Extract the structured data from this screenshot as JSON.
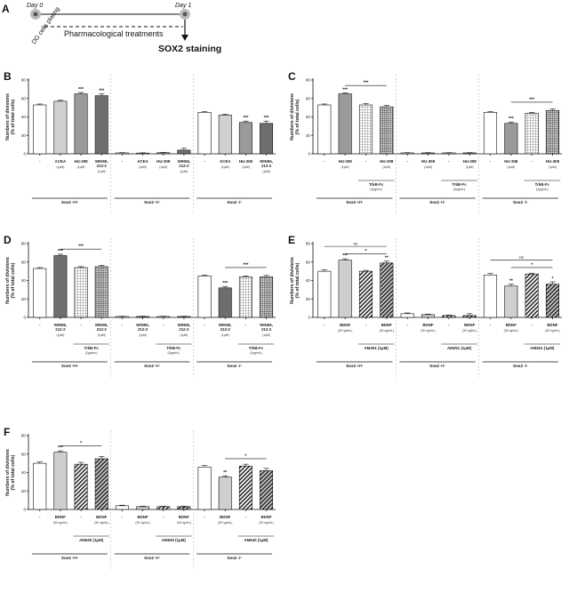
{
  "panel_a": {
    "label": "A",
    "day0": "Day 0",
    "day1": "Day 1",
    "plating": "DG cells plating",
    "treatment": "Pharmacological treatments",
    "readout": "SOX2 staining"
  },
  "colors": {
    "white": "#ffffff",
    "light_gray": "#d0d0d0",
    "mid_gray": "#9a9a9a",
    "dark_gray": "#6e6e6e",
    "black": "#111111"
  },
  "chart_data": [
    {
      "panel": "B",
      "type": "bar",
      "ylabel": "Numbers of divisions\n(% of total cells)",
      "ylim": [
        0,
        80
      ],
      "yticks": [
        0,
        20,
        40,
        60,
        80
      ],
      "groups": [
        {
          "name": "Sox2 +/+",
          "bars": [
            {
              "label": "-",
              "sub": "",
              "value": 53,
              "err": 1,
              "fill": "white",
              "sig": ""
            },
            {
              "label": "ACEA",
              "sub": "(1μM)",
              "value": 57,
              "err": 1,
              "fill": "light",
              "sig": ""
            },
            {
              "label": "HU-308",
              "sub": "(1μM)",
              "value": 65,
              "err": 1.5,
              "fill": "mid",
              "sig": "***"
            },
            {
              "label": "WIN55,\n212-2",
              "sub": "(1μM)",
              "value": 63,
              "err": 2,
              "fill": "dark",
              "sig": "***"
            }
          ]
        },
        {
          "name": "Sox2 +/-",
          "bars": [
            {
              "label": "-",
              "sub": "",
              "value": 1,
              "err": 0.3,
              "fill": "white",
              "sig": ""
            },
            {
              "label": "ACEA",
              "sub": "(1μM)",
              "value": 0.8,
              "err": 0.3,
              "fill": "light",
              "sig": ""
            },
            {
              "label": "HU-308",
              "sub": "(1μM)",
              "value": 1.2,
              "err": 0.3,
              "fill": "mid",
              "sig": ""
            },
            {
              "label": "WIN55,\n212-2",
              "sub": "(1μM)",
              "value": 4,
              "err": 2,
              "fill": "dark",
              "sig": ""
            }
          ]
        },
        {
          "name": "Sox2 -/-",
          "bars": [
            {
              "label": "-",
              "sub": "",
              "value": 45,
              "err": 0.8,
              "fill": "white",
              "sig": ""
            },
            {
              "label": "ACEA",
              "sub": "(1μM)",
              "value": 42,
              "err": 1,
              "fill": "light",
              "sig": ""
            },
            {
              "label": "HU-308",
              "sub": "(1μM)",
              "value": 34,
              "err": 1.5,
              "fill": "mid",
              "sig": "***"
            },
            {
              "label": "WIN55,\n212-2",
              "sub": "(1μM)",
              "value": 33,
              "err": 2.5,
              "fill": "dark",
              "sig": "***"
            }
          ]
        }
      ],
      "brackets": [],
      "underlines": []
    },
    {
      "panel": "C",
      "type": "bar",
      "ylabel": "Numbers of divisions\n(% of total cells)",
      "ylim": [
        0,
        80
      ],
      "yticks": [
        0,
        20,
        40,
        60,
        80
      ],
      "groups": [
        {
          "name": "Sox2 +/+",
          "bars": [
            {
              "label": "-",
              "sub": "",
              "value": 53,
              "err": 1,
              "fill": "white",
              "sig": ""
            },
            {
              "label": "HU-308",
              "sub": "(1μM)",
              "value": 65,
              "err": 1,
              "fill": "mid",
              "sig": "***"
            },
            {
              "label": "-",
              "sub": "",
              "value": 53,
              "err": 1.5,
              "fill": "grid",
              "sig": ""
            },
            {
              "label": "HU-308",
              "sub": "(1μM)",
              "value": 51,
              "err": 1.5,
              "fill": "grid_dark",
              "sig": ""
            }
          ]
        },
        {
          "name": "Sox2 +/-",
          "bars": [
            {
              "label": "-",
              "sub": "",
              "value": 1,
              "err": 0.3,
              "fill": "white",
              "sig": ""
            },
            {
              "label": "HU-308",
              "sub": "(1μM)",
              "value": 1,
              "err": 0.3,
              "fill": "mid",
              "sig": ""
            },
            {
              "label": "-",
              "sub": "",
              "value": 1,
              "err": 0.3,
              "fill": "grid",
              "sig": ""
            },
            {
              "label": "HU-308",
              "sub": "(1μM)",
              "value": 1,
              "err": 0.3,
              "fill": "grid_dark",
              "sig": ""
            }
          ]
        },
        {
          "name": "Sox2 -/-",
          "bars": [
            {
              "label": "-",
              "sub": "",
              "value": 45,
              "err": 0.8,
              "fill": "white",
              "sig": ""
            },
            {
              "label": "HU-308",
              "sub": "(1μM)",
              "value": 33,
              "err": 1.5,
              "fill": "mid",
              "sig": "***"
            },
            {
              "label": "-",
              "sub": "",
              "value": 44,
              "err": 1,
              "fill": "grid",
              "sig": ""
            },
            {
              "label": "HU-308",
              "sub": "(1μM)",
              "value": 47,
              "err": 1.5,
              "fill": "grid_dark",
              "sig": ""
            }
          ]
        }
      ],
      "brackets": [
        {
          "group": 0,
          "from": 1,
          "to": 3,
          "y": 74,
          "text": "***"
        },
        {
          "group": 2,
          "from": 1,
          "to": 3,
          "y": 56,
          "text": "***"
        }
      ],
      "underlines": [
        {
          "group": 0,
          "from": 2,
          "to": 3,
          "text": "TrkB-Fc",
          "sub": "(2μg/mL)"
        },
        {
          "group": 1,
          "from": 2,
          "to": 3,
          "text": "TrkB-Fc",
          "sub": "(2μg/mL)"
        },
        {
          "group": 2,
          "from": 2,
          "to": 3,
          "text": "TrkB-Fc",
          "sub": "(2μg/mL)"
        }
      ]
    },
    {
      "panel": "D",
      "type": "bar",
      "ylabel": "Numbers of divisions\n(% of total cells)",
      "ylim": [
        0,
        80
      ],
      "yticks": [
        0,
        20,
        40,
        60,
        80
      ],
      "groups": [
        {
          "name": "Sox2 +/+",
          "bars": [
            {
              "label": "-",
              "sub": "",
              "value": 53,
              "err": 1,
              "fill": "white",
              "sig": ""
            },
            {
              "label": "WIN55,\n212-2",
              "sub": "(1μM)",
              "value": 67,
              "err": 1.5,
              "fill": "dark",
              "sig": "***"
            },
            {
              "label": "-",
              "sub": "",
              "value": 54,
              "err": 1,
              "fill": "grid",
              "sig": ""
            },
            {
              "label": "WIN55,\n212-2",
              "sub": "(1μM)",
              "value": 55,
              "err": 1.5,
              "fill": "grid_dark",
              "sig": ""
            }
          ]
        },
        {
          "name": "Sox2 +/-",
          "bars": [
            {
              "label": "-",
              "sub": "",
              "value": 1,
              "err": 0.3,
              "fill": "white",
              "sig": ""
            },
            {
              "label": "WIN55,\n212-2",
              "sub": "(1μM)",
              "value": 1,
              "err": 0.3,
              "fill": "dark",
              "sig": ""
            },
            {
              "label": "-",
              "sub": "",
              "value": 1,
              "err": 0.3,
              "fill": "grid",
              "sig": ""
            },
            {
              "label": "WIN55,\n212-2",
              "sub": "(1μM)",
              "value": 1,
              "err": 0.3,
              "fill": "grid_dark",
              "sig": ""
            }
          ]
        },
        {
          "name": "Sox2 -/-",
          "bars": [
            {
              "label": "-",
              "sub": "",
              "value": 45,
              "err": 0.8,
              "fill": "white",
              "sig": ""
            },
            {
              "label": "WIN55,\n212-2",
              "sub": "(1μM)",
              "value": 32,
              "err": 1.5,
              "fill": "dark",
              "sig": "***"
            },
            {
              "label": "-",
              "sub": "",
              "value": 44,
              "err": 1,
              "fill": "grid",
              "sig": ""
            },
            {
              "label": "WIN55,\n212-2",
              "sub": "(1μM)",
              "value": 44,
              "err": 1.5,
              "fill": "grid_dark",
              "sig": ""
            }
          ]
        }
      ],
      "brackets": [
        {
          "group": 0,
          "from": 1,
          "to": 3,
          "y": 74,
          "text": "***"
        },
        {
          "group": 2,
          "from": 1,
          "to": 3,
          "y": 54,
          "text": "***"
        }
      ],
      "underlines": [
        {
          "group": 0,
          "from": 2,
          "to": 3,
          "text": "TrkB-Fc",
          "sub": "(2μg/mL)"
        },
        {
          "group": 1,
          "from": 2,
          "to": 3,
          "text": "TrkB-Fc",
          "sub": "(2μg/mL)"
        },
        {
          "group": 2,
          "from": 2,
          "to": 3,
          "text": "TrkB-Fc",
          "sub": "(2μg/mL)"
        }
      ]
    },
    {
      "panel": "E",
      "type": "bar",
      "ylabel": "Numbers of divisions\n(% of total cells)",
      "ylim": [
        0,
        80
      ],
      "yticks": [
        0,
        20,
        40,
        60,
        80
      ],
      "groups": [
        {
          "name": "Sox2 +/+",
          "bars": [
            {
              "label": "-",
              "sub": "",
              "value": 50,
              "err": 1.5,
              "fill": "white",
              "sig": ""
            },
            {
              "label": "BDNF",
              "sub": "(30 ng/mL)",
              "value": 62,
              "err": 1.5,
              "fill": "dots",
              "sig": "***"
            },
            {
              "label": "-",
              "sub": "",
              "value": 50,
              "err": 1,
              "fill": "hatch",
              "sig": ""
            },
            {
              "label": "BDNF",
              "sub": "(30 ng/mL)",
              "value": 59,
              "err": 2,
              "fill": "hatch_dots",
              "sig": "**"
            }
          ]
        },
        {
          "name": "Sox2 +/-",
          "bars": [
            {
              "label": "-",
              "sub": "",
              "value": 4,
              "err": 0.8,
              "fill": "white",
              "sig": ""
            },
            {
              "label": "BDNF",
              "sub": "(30 ng/mL)",
              "value": 3,
              "err": 0.5,
              "fill": "dots",
              "sig": ""
            },
            {
              "label": "-",
              "sub": "",
              "value": 2,
              "err": 0.5,
              "fill": "hatch",
              "sig": ""
            },
            {
              "label": "BDNF",
              "sub": "(30 ng/mL)",
              "value": 2,
              "err": 2,
              "fill": "hatch_dots",
              "sig": ""
            }
          ]
        },
        {
          "name": "Sox2 -/-",
          "bars": [
            {
              "label": "-",
              "sub": "",
              "value": 46,
              "err": 1.5,
              "fill": "white",
              "sig": ""
            },
            {
              "label": "BDNF",
              "sub": "(30 ng/mL)",
              "value": 34,
              "err": 2,
              "fill": "dots",
              "sig": "**"
            },
            {
              "label": "-",
              "sub": "",
              "value": 47,
              "err": 1,
              "fill": "hatch",
              "sig": ""
            },
            {
              "label": "BDNF",
              "sub": "(30 ng/mL)",
              "value": 36,
              "err": 2.5,
              "fill": "hatch_dots",
              "sig": "*"
            }
          ]
        }
      ],
      "brackets": [
        {
          "group": 0,
          "from": 1,
          "to": 3,
          "y": 69,
          "text": "*"
        },
        {
          "group": 0,
          "from": 0,
          "to": 3,
          "y": 77,
          "text": "ns"
        },
        {
          "group": 2,
          "from": 1,
          "to": 3,
          "y": 54,
          "text": "*"
        },
        {
          "group": 2,
          "from": 0,
          "to": 3,
          "y": 62,
          "text": "ns"
        }
      ],
      "underlines": [
        {
          "group": 0,
          "from": 2,
          "to": 3,
          "text": "AM251 (1μM)",
          "sub": ""
        },
        {
          "group": 1,
          "from": 2,
          "to": 3,
          "text": "AM251 (1μM)",
          "sub": ""
        },
        {
          "group": 2,
          "from": 2,
          "to": 3,
          "text": "AM251 (1μM)",
          "sub": ""
        }
      ]
    },
    {
      "panel": "F",
      "type": "bar",
      "ylabel": "Numbers of divisions\n(% of total cells)",
      "ylim": [
        0,
        80
      ],
      "yticks": [
        0,
        20,
        40,
        60,
        80
      ],
      "groups": [
        {
          "name": "Sox2 +/+",
          "bars": [
            {
              "label": "-",
              "sub": "",
              "value": 50,
              "err": 1.5,
              "fill": "white",
              "sig": ""
            },
            {
              "label": "BDNF",
              "sub": "(30 ng/mL)",
              "value": 62,
              "err": 1.5,
              "fill": "dots",
              "sig": "***"
            },
            {
              "label": "-",
              "sub": "",
              "value": 49,
              "err": 2,
              "fill": "hatch",
              "sig": ""
            },
            {
              "label": "BDNF",
              "sub": "(30 ng/mL)",
              "value": 55,
              "err": 2.5,
              "fill": "hatch_dots",
              "sig": ""
            }
          ]
        },
        {
          "name": "Sox2 +/-",
          "bars": [
            {
              "label": "-",
              "sub": "",
              "value": 4,
              "err": 0.6,
              "fill": "white",
              "sig": ""
            },
            {
              "label": "BDNF",
              "sub": "(30 ng/mL)",
              "value": 3,
              "err": 0.5,
              "fill": "dots",
              "sig": ""
            },
            {
              "label": "-",
              "sub": "",
              "value": 3,
              "err": 0.5,
              "fill": "hatch",
              "sig": ""
            },
            {
              "label": "BDNF",
              "sub": "(30 ng/mL)",
              "value": 3,
              "err": 0.5,
              "fill": "hatch_dots",
              "sig": ""
            }
          ]
        },
        {
          "name": "Sox2 -/-",
          "bars": [
            {
              "label": "-",
              "sub": "",
              "value": 46,
              "err": 1.5,
              "fill": "white",
              "sig": ""
            },
            {
              "label": "BDNF",
              "sub": "(30 ng/mL)",
              "value": 35,
              "err": 1.5,
              "fill": "dots",
              "sig": "**"
            },
            {
              "label": "-",
              "sub": "",
              "value": 47,
              "err": 2,
              "fill": "hatch",
              "sig": ""
            },
            {
              "label": "BDNF",
              "sub": "(30 ng/mL)",
              "value": 42,
              "err": 2.5,
              "fill": "hatch_dots",
              "sig": ""
            }
          ]
        }
      ],
      "brackets": [
        {
          "group": 0,
          "from": 1,
          "to": 3,
          "y": 69,
          "text": "*"
        },
        {
          "group": 2,
          "from": 1,
          "to": 3,
          "y": 55,
          "text": "*"
        }
      ],
      "underlines": [
        {
          "group": 0,
          "from": 2,
          "to": 3,
          "text": "AM630 (1μM)",
          "sub": ""
        },
        {
          "group": 1,
          "from": 2,
          "to": 3,
          "text": "AM630 (1μM)",
          "sub": ""
        },
        {
          "group": 2,
          "from": 2,
          "to": 3,
          "text": "AM630 (1μM)",
          "sub": ""
        }
      ]
    }
  ]
}
